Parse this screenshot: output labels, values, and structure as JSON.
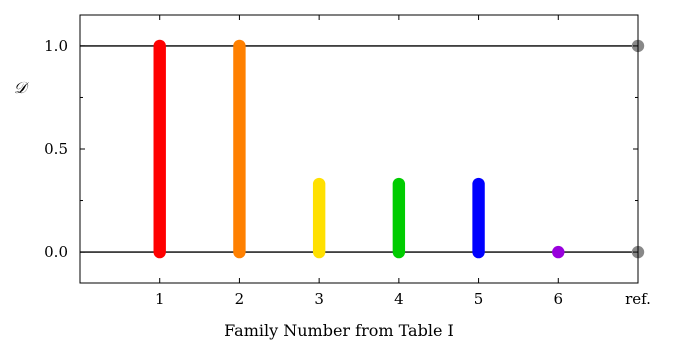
{
  "chart_data": {
    "type": "scatter",
    "xlabel": "Family Number from Table I",
    "ylabel": "𝒟",
    "x_ticks": [
      "1",
      "2",
      "3",
      "4",
      "5",
      "6",
      "ref."
    ],
    "y_ticks": [
      "0.0",
      "0.5",
      "1.0"
    ],
    "xlim": [
      0,
      7
    ],
    "ylim": [
      -0.15,
      1.15
    ],
    "reference_lines": [
      0.0,
      1.0
    ],
    "series": [
      {
        "x": 1,
        "y_min": 0.0,
        "y_max": 1.0,
        "color": "#ff0000"
      },
      {
        "x": 2,
        "y_min": 0.0,
        "y_max": 1.0,
        "color": "#ff8000"
      },
      {
        "x": 3,
        "y_min": 0.0,
        "y_max": 0.33,
        "color": "#ffe000"
      },
      {
        "x": 4,
        "y_min": 0.0,
        "y_max": 0.33,
        "color": "#00cc00"
      },
      {
        "x": 5,
        "y_min": 0.0,
        "y_max": 0.33,
        "color": "#0000ff"
      },
      {
        "x": 6,
        "y_min": 0.0,
        "y_max": 0.0,
        "color": "#9900dd"
      }
    ],
    "reference_points": [
      {
        "x": 7,
        "y": 1.0,
        "color": "#888888"
      },
      {
        "x": 7,
        "y": 0.0,
        "color": "#888888"
      }
    ],
    "grid": false
  }
}
